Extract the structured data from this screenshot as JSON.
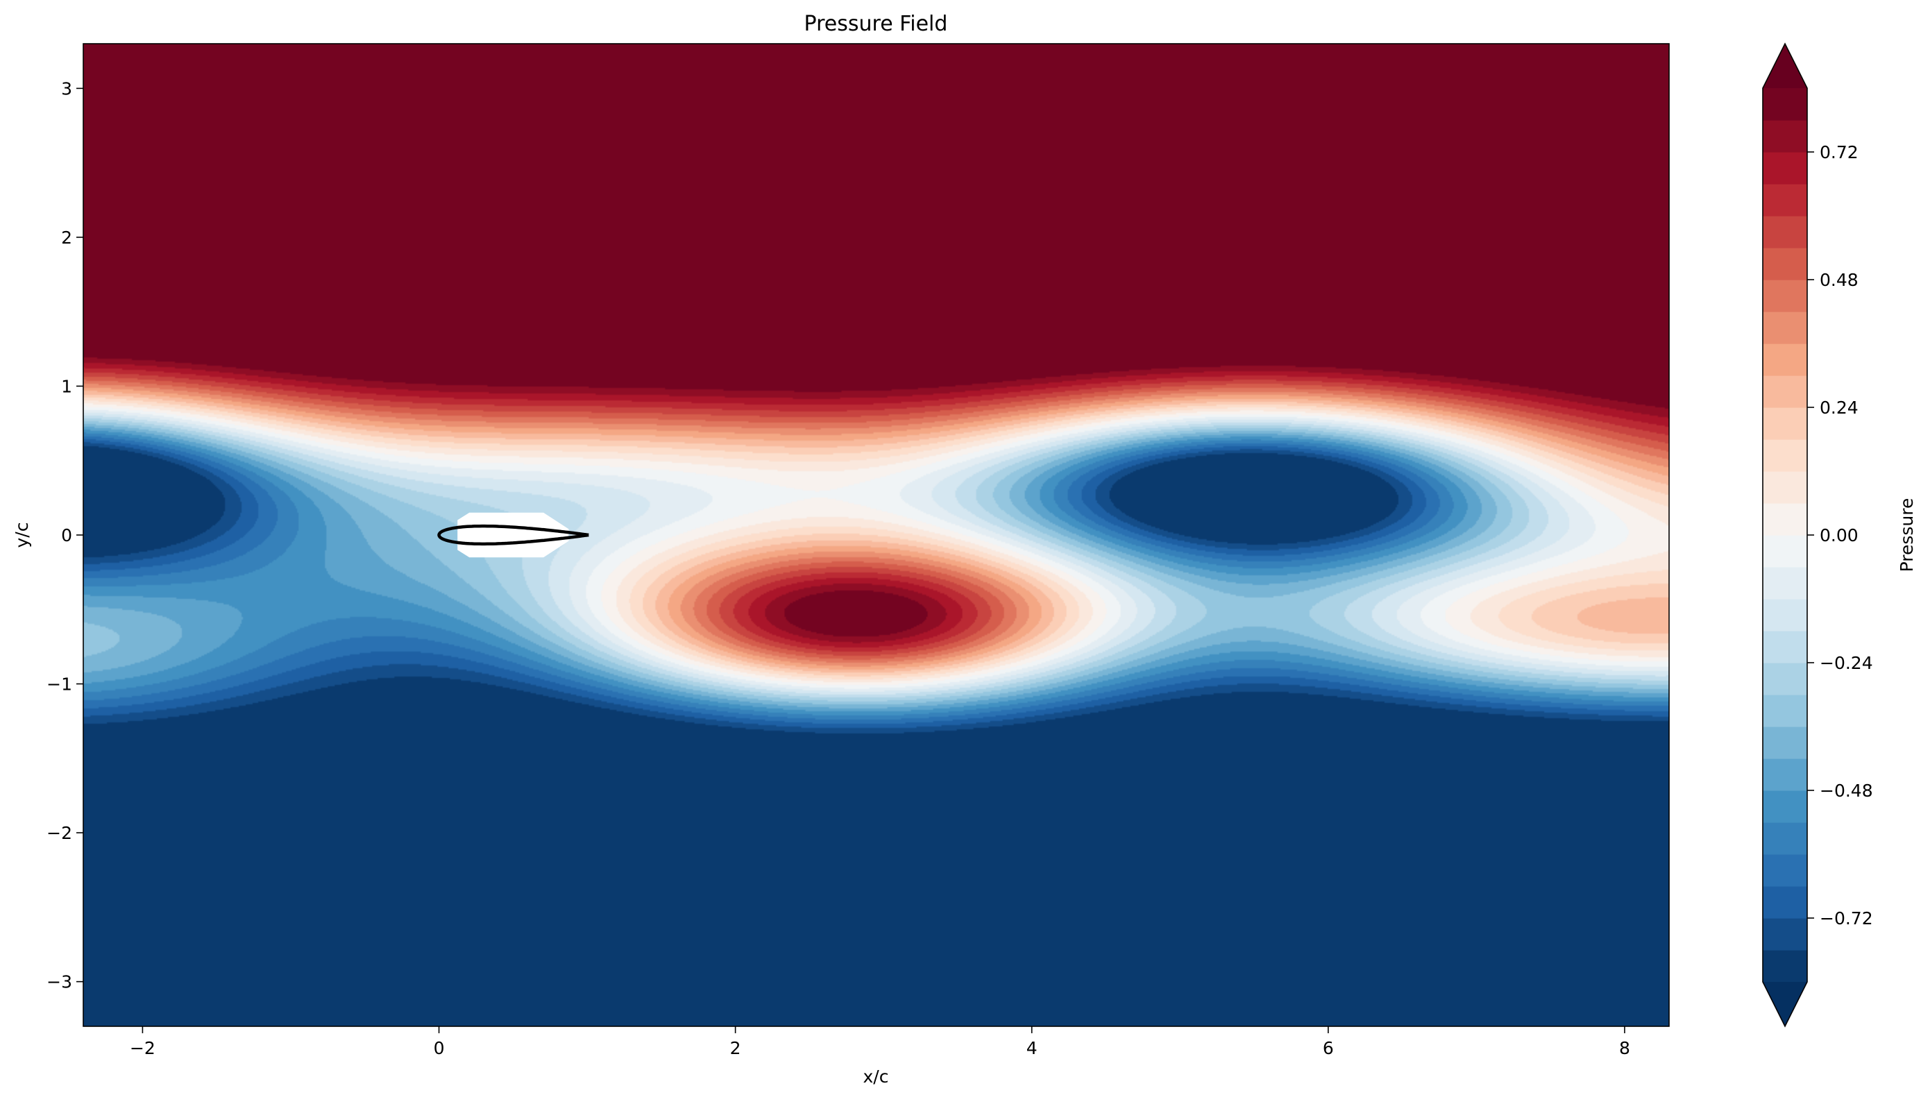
{
  "chart_data": {
    "type": "contour",
    "title": "Pressure Field",
    "xlabel": "x/c",
    "ylabel": "y/c",
    "colorbar_label": "Pressure",
    "colormap": "RdBu_r",
    "xlim": [
      -2.4,
      8.3
    ],
    "ylim": [
      -3.3,
      3.3
    ],
    "x_ticks": [
      -2,
      0,
      2,
      4,
      6,
      8
    ],
    "x_tick_labels": [
      "−2",
      "0",
      "2",
      "4",
      "6",
      "8"
    ],
    "y_ticks": [
      -3,
      -2,
      -1,
      0,
      1,
      2,
      3
    ],
    "y_tick_labels": [
      "−3",
      "−2",
      "−1",
      "0",
      "1",
      "2",
      "3"
    ],
    "levels": {
      "min": -0.84,
      "max": 0.84,
      "step": 0.06
    },
    "colorbar_extend": "both",
    "colorbar_ticks": [
      -0.72,
      -0.48,
      -0.24,
      0.0,
      0.24,
      0.48,
      0.72
    ],
    "colorbar_tick_labels": [
      "−0.72",
      "−0.48",
      "−0.24",
      "0.00",
      "0.24",
      "0.48",
      "0.72"
    ],
    "airfoil": {
      "leading_edge_x": 0.0,
      "chord": 1.0,
      "thickness": 0.12
    },
    "field_features": [
      {
        "kind": "low",
        "x": -2.2,
        "y": 0.4,
        "value": -0.84
      },
      {
        "kind": "low",
        "x": 5.4,
        "y": 0.38,
        "value": -0.84
      },
      {
        "kind": "high",
        "x": 2.8,
        "y": -0.62,
        "value": 0.84
      },
      {
        "kind": "high",
        "x": 8.3,
        "y": -0.68,
        "value": 0.55
      },
      {
        "kind": "high",
        "x": -2.4,
        "y": -0.85,
        "value": 0.02
      },
      {
        "kind": "far_field_high",
        "y_above": 2.0,
        "value": 0.84
      },
      {
        "kind": "far_field_low",
        "y_below": -2.0,
        "value": -0.84
      }
    ]
  }
}
